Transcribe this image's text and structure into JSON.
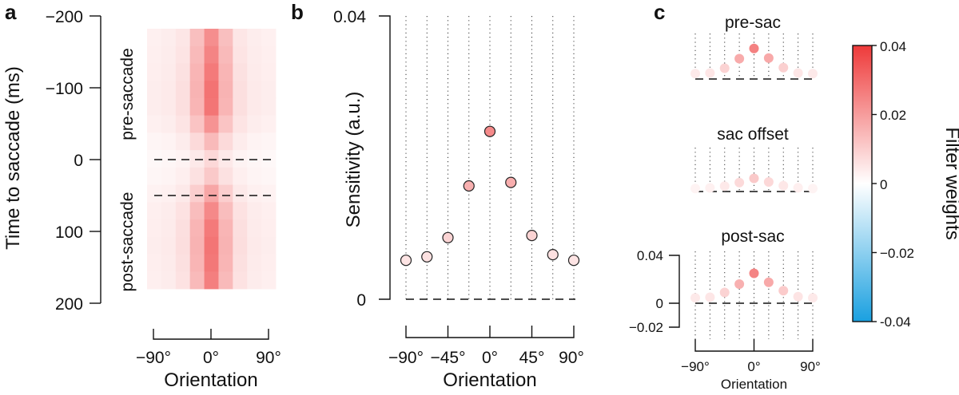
{
  "panels": {
    "a": {
      "letter": "a",
      "ylabel": "Time to saccade (ms)",
      "xlabel": "Orientation",
      "yticks": [
        "−200",
        "−100",
        "0",
        "100",
        "200"
      ],
      "xticks": [
        "−90°",
        "0°",
        "90°"
      ],
      "label_pre": "pre-saccade",
      "label_post": "post-saccade"
    },
    "b": {
      "letter": "b",
      "ylabel": "Sensitivity (a.u.)",
      "xlabel": "Orientation",
      "yticks": [
        "0.04",
        "0"
      ],
      "xticks": [
        "−90°",
        "−45°",
        "0°",
        "45°",
        "90°"
      ]
    },
    "c": {
      "letter": "c",
      "titles": [
        "pre-sac",
        "sac offset",
        "post-sac"
      ],
      "xlabel": "Orientation",
      "yticks": [
        "0.04",
        "0",
        "−0.02"
      ],
      "xticks": [
        "−90°",
        "0°",
        "90°"
      ]
    },
    "colorbar": {
      "label": "Filter weights",
      "ticks": [
        "0.04",
        "0.02",
        "0",
        "−0.02",
        "-0.04"
      ],
      "color_min": "#1aa0e0",
      "color_mid": "#ffffff",
      "color_max": "#ee3a3a"
    }
  },
  "chart_data": [
    {
      "panel": "a",
      "type": "heatmap",
      "x_orientation_deg": [
        -90,
        -67.5,
        -45,
        -22.5,
        0,
        22.5,
        45,
        67.5,
        90
      ],
      "y_time_ms": [
        -175,
        -150,
        -125,
        -100,
        -75,
        -50,
        -25,
        0,
        25,
        50,
        75,
        100,
        125,
        150,
        175
      ],
      "values": [
        [
          0.003,
          0.0036,
          0.005,
          0.013,
          0.023,
          0.013,
          0.005,
          0.0036,
          0.003
        ],
        [
          0.0032,
          0.0038,
          0.0055,
          0.014,
          0.025,
          0.014,
          0.0055,
          0.0038,
          0.0032
        ],
        [
          0.0034,
          0.004,
          0.006,
          0.015,
          0.027,
          0.015,
          0.006,
          0.004,
          0.0034
        ],
        [
          0.0036,
          0.0042,
          0.0065,
          0.0155,
          0.0285,
          0.0155,
          0.0065,
          0.0042,
          0.0036
        ],
        [
          0.0036,
          0.0042,
          0.0065,
          0.015,
          0.028,
          0.015,
          0.0065,
          0.0042,
          0.0036
        ],
        [
          0.003,
          0.0036,
          0.0055,
          0.012,
          0.022,
          0.012,
          0.0055,
          0.0036,
          0.003
        ],
        [
          0.002,
          0.0025,
          0.0038,
          0.0075,
          0.014,
          0.0075,
          0.0038,
          0.0025,
          0.002
        ],
        [
          0.0015,
          0.0018,
          0.0025,
          0.0045,
          0.008,
          0.0045,
          0.0025,
          0.0018,
          0.0015
        ],
        [
          0.0018,
          0.0022,
          0.0032,
          0.006,
          0.011,
          0.006,
          0.0032,
          0.0022,
          0.0018
        ],
        [
          0.0026,
          0.003,
          0.0045,
          0.01,
          0.018,
          0.01,
          0.0045,
          0.003,
          0.0026
        ],
        [
          0.0032,
          0.0038,
          0.0058,
          0.0135,
          0.024,
          0.0135,
          0.0058,
          0.0038,
          0.0032
        ],
        [
          0.0035,
          0.0041,
          0.0064,
          0.015,
          0.027,
          0.015,
          0.0064,
          0.0041,
          0.0035
        ],
        [
          0.0036,
          0.0042,
          0.0066,
          0.0155,
          0.028,
          0.0155,
          0.0066,
          0.0042,
          0.0036
        ],
        [
          0.0034,
          0.004,
          0.0062,
          0.015,
          0.0275,
          0.015,
          0.0062,
          0.004,
          0.0034
        ],
        [
          0.0032,
          0.0038,
          0.0058,
          0.014,
          0.026,
          0.014,
          0.0058,
          0.0038,
          0.0032
        ]
      ],
      "xlim": [
        -90,
        90
      ],
      "ylim": [
        -200,
        200
      ],
      "dashed_lines_ms": [
        0,
        50
      ]
    },
    {
      "panel": "b",
      "type": "scatter",
      "x": [
        -90,
        -67.5,
        -45,
        -22.5,
        0,
        22.5,
        45,
        67.5,
        90
      ],
      "y": [
        0.0055,
        0.006,
        0.0087,
        0.016,
        0.0237,
        0.0165,
        0.009,
        0.0063,
        0.0055
      ],
      "xlim": [
        -90,
        90
      ],
      "ylim": [
        0,
        0.04
      ],
      "grid": "vertical dotted lines",
      "zero_line": "dashed"
    },
    {
      "panel": "c",
      "type": "scatter",
      "x": [
        -90,
        -67.5,
        -45,
        -22.5,
        0,
        22.5,
        45,
        67.5,
        90
      ],
      "ylim": [
        -0.02,
        0.04
      ],
      "series": [
        {
          "name": "pre-sac",
          "y": [
            0.0045,
            0.005,
            0.009,
            0.017,
            0.0255,
            0.0175,
            0.0095,
            0.005,
            0.0045
          ]
        },
        {
          "name": "sac offset",
          "y": [
            0.0025,
            0.003,
            0.0045,
            0.0075,
            0.011,
            0.008,
            0.0048,
            0.0032,
            0.0025
          ]
        },
        {
          "name": "post-sac",
          "y": [
            0.0045,
            0.005,
            0.009,
            0.016,
            0.025,
            0.0175,
            0.0105,
            0.0055,
            0.0045
          ]
        }
      ]
    }
  ]
}
